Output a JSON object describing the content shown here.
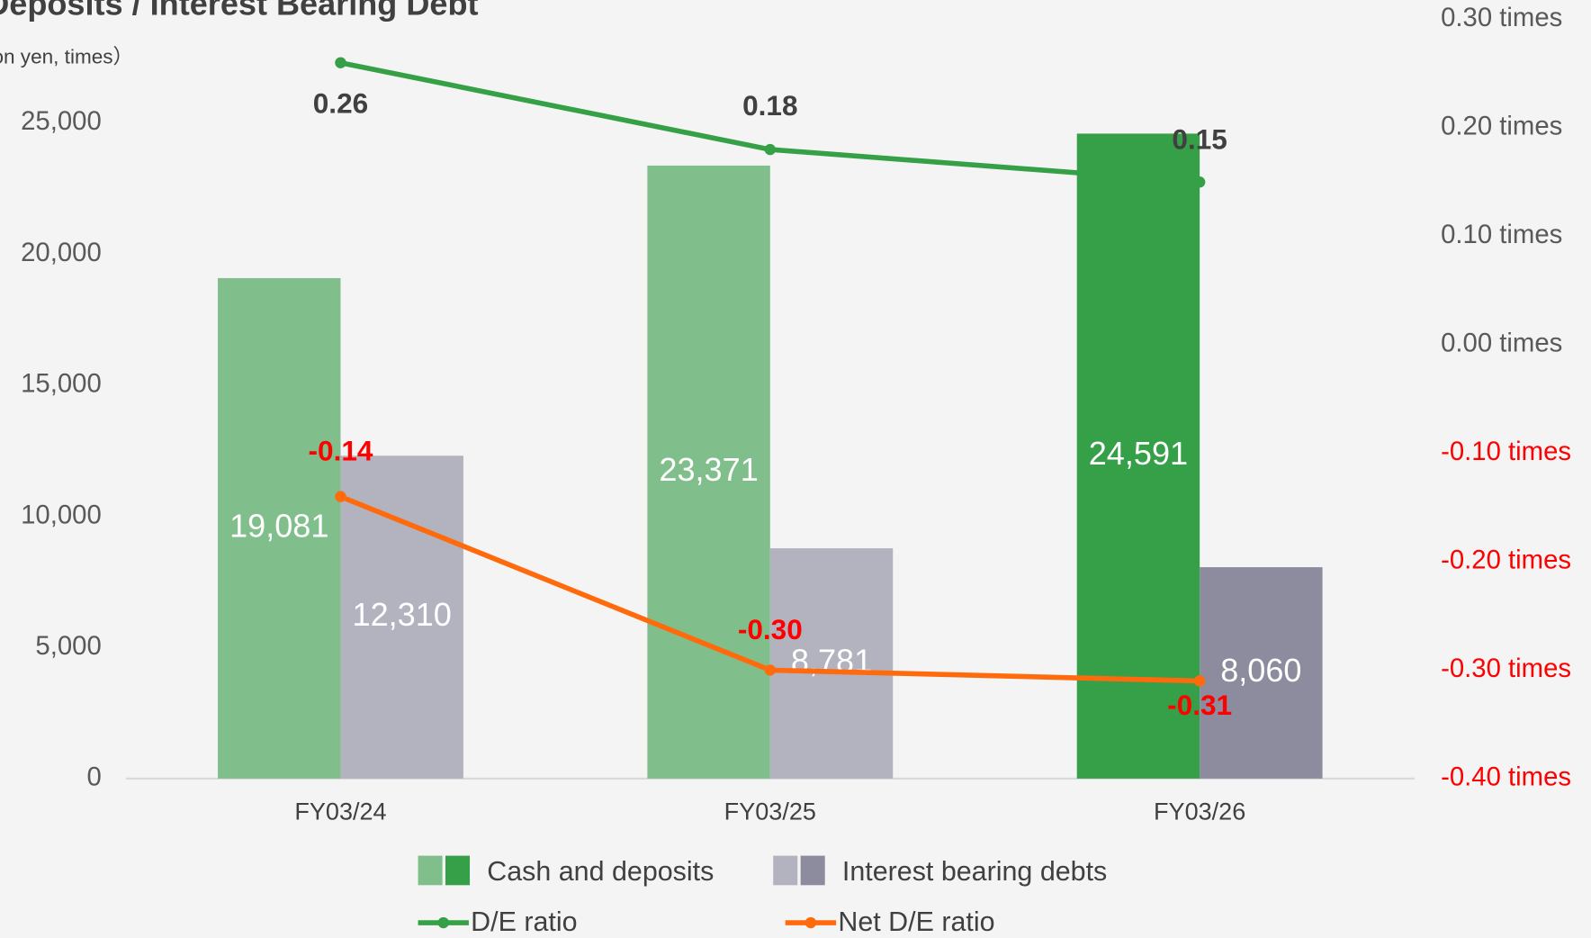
{
  "chart_data": {
    "type": "bar_line",
    "title": "Deposits / Interest Bearing Debt",
    "subtitle": "（Million yen, times）",
    "categories": [
      "FY03/24",
      "FY03/25",
      "FY03/26"
    ],
    "series": [
      {
        "name": "Cash and deposits",
        "type": "bar",
        "colors": [
          "#80bf8c",
          "#80bf8c",
          "#35a047"
        ],
        "legend_colors": [
          "#80bf8c",
          "#35a047"
        ],
        "values": [
          19081,
          23371,
          24591
        ],
        "value_labels": [
          "19,081",
          "23,371",
          "24,591"
        ]
      },
      {
        "name": "Interest bearing debts",
        "type": "bar",
        "colors": [
          "#b3b3c0",
          "#b3b3c0",
          "#8c8c9e"
        ],
        "legend_colors": [
          "#b3b3c0",
          "#8c8c9e"
        ],
        "values": [
          12310,
          8781,
          8060
        ],
        "value_labels": [
          "12,310",
          "8,781",
          "8,060"
        ]
      },
      {
        "name": "D/E ratio",
        "type": "line",
        "axis": "y2",
        "color": "#36a047",
        "label_color": "#404040",
        "values": [
          0.26,
          0.18,
          0.15
        ],
        "value_labels": [
          "0.26",
          "0.18",
          "0.15"
        ]
      },
      {
        "name": "Net D/E ratio",
        "type": "line",
        "axis": "y2",
        "color": "#ff6a0d",
        "label_color": "#ff0000",
        "values": [
          -0.14,
          -0.3,
          -0.31
        ],
        "value_labels": [
          "-0.14",
          "-0.30",
          "-0.31"
        ]
      }
    ],
    "ylim": [
      0,
      25000
    ],
    "yticks": [
      0,
      {
        "value": 5000,
        "label": "5,000"
      },
      {
        "value": 10000,
        "label": "10,000"
      },
      {
        "value": 15000,
        "label": "15,000"
      },
      {
        "value": 20000,
        "label": "20,000"
      },
      {
        "value": 25000,
        "label": "25,000"
      }
    ],
    "y2lim": [
      -0.4,
      0.3
    ],
    "y2ticks": [
      {
        "value": -0.4,
        "label": "-0.40 times"
      },
      {
        "value": -0.3,
        "label": "-0.30 times"
      },
      {
        "value": -0.2,
        "label": "-0.20 times"
      },
      {
        "value": -0.1,
        "label": "-0.10 times"
      },
      {
        "value": 0,
        "label": "0.00 times"
      },
      {
        "value": 0.1,
        "label": "0.10 times"
      },
      {
        "value": 0.2,
        "label": "0.20 times"
      },
      {
        "value": 0.3,
        "label": "0.30 times"
      }
    ],
    "y2tick_negative_color": "#ff0000",
    "grid": false,
    "legend": "bottom"
  }
}
